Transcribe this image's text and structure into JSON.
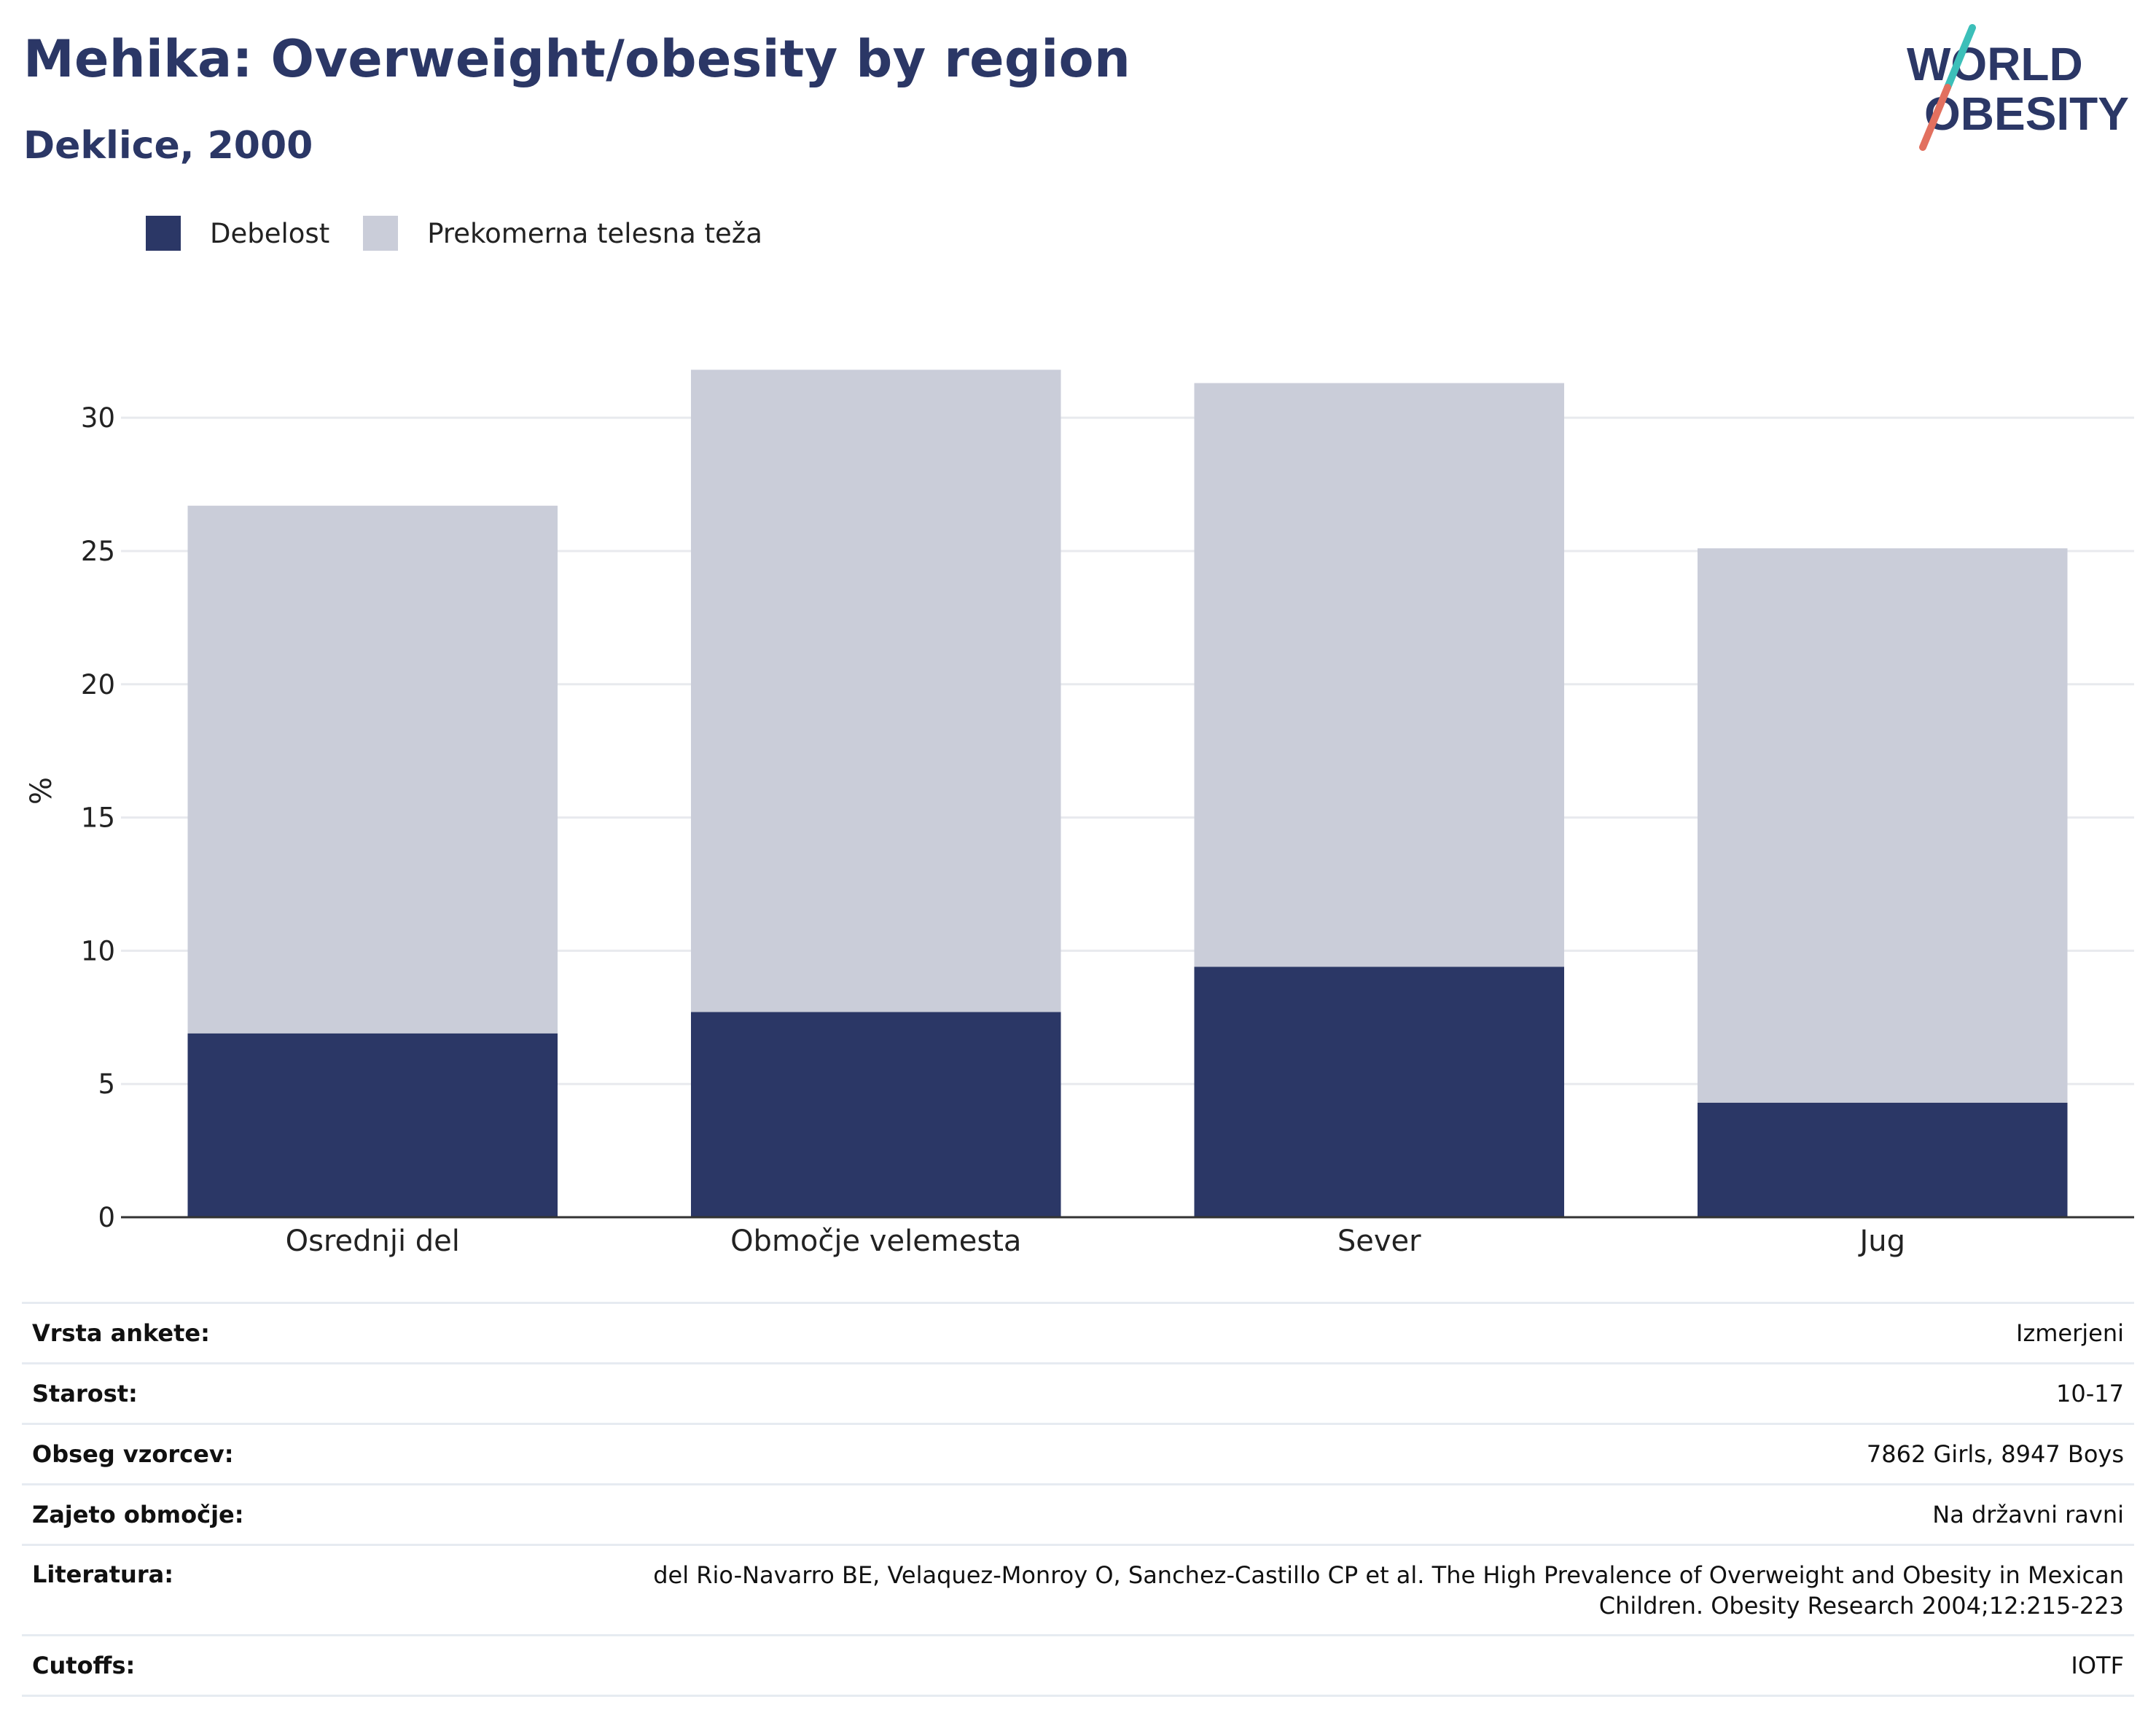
{
  "header": {
    "title": "Mehika: Overweight/obesity by region",
    "subtitle": "Deklice, 2000"
  },
  "logo": {
    "line1": "WORLD",
    "line2": "OBESITY"
  },
  "colors": {
    "obesity": "#2b3766",
    "overweight": "#cacdd9",
    "axis": "#333333",
    "grid": "#e8eaee",
    "logo_text": "#2b3766",
    "logo_teal": "#3cbfb9",
    "logo_coral": "#e2705f"
  },
  "legend": [
    {
      "label": "Debelost"
    },
    {
      "label": "Prekomerna telesna teža"
    }
  ],
  "chart_data": {
    "type": "bar",
    "stacked": true,
    "categories": [
      "Osrednji del",
      "Območje velemesta",
      "Sever",
      "Jug"
    ],
    "series": [
      {
        "name": "Debelost",
        "values": [
          6.9,
          7.7,
          9.4,
          4.3
        ]
      },
      {
        "name": "Prekomerna telesna teža",
        "values": [
          19.8,
          24.1,
          21.9,
          20.8
        ]
      }
    ],
    "ylabel": "%",
    "xlabel": "",
    "ylim": [
      0,
      32
    ],
    "yticks": [
      0,
      5,
      10,
      15,
      20,
      25,
      30
    ],
    "grid": true,
    "legend_position": "top-left"
  },
  "meta": [
    {
      "key": "Vrsta ankete:",
      "value": "Izmerjeni"
    },
    {
      "key": "Starost:",
      "value": "10-17"
    },
    {
      "key": "Obseg vzorcev:",
      "value": "7862 Girls, 8947 Boys"
    },
    {
      "key": "Zajeto območje:",
      "value": "Na državni ravni"
    },
    {
      "key": "Literatura:",
      "value": "del Rio-Navarro BE, Velaquez-Monroy O, Sanchez-Castillo CP et al. The High Prevalence of Overweight and Obesity in Mexican",
      "value2": "Children. Obesity Research 2004;12:215-223"
    },
    {
      "key": "Cutoffs:",
      "value": "IOTF"
    }
  ]
}
